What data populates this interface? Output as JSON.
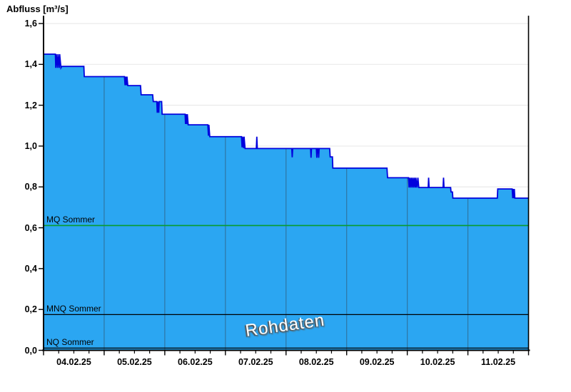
{
  "title": "Abfluss [m³/s]",
  "watermark": "Rohdaten",
  "chart_data": {
    "type": "area",
    "title": "Abfluss [m³/s]",
    "ylabel": "Abfluss [m³/s]",
    "xlabel": "",
    "ylim": [
      0,
      1.6
    ],
    "x_days": 8,
    "legend": "none",
    "grid": {
      "horizontal": "light-gray at each 0.2",
      "vertical": "day separators visible only inside fill"
    },
    "colors": {
      "fill": "#2BA6F2",
      "line": "#0202DD",
      "day_grid": "#2E76A4",
      "h_grid": "#E9E9E9",
      "axis": "#000000",
      "mq_green": "#0A9B2D"
    },
    "y_ticks": [
      {
        "v": 0.0,
        "label": "0,0"
      },
      {
        "v": 0.2,
        "label": "0,2"
      },
      {
        "v": 0.4,
        "label": "0,4"
      },
      {
        "v": 0.6,
        "label": "0,6"
      },
      {
        "v": 0.8,
        "label": "0,8"
      },
      {
        "v": 1.0,
        "label": "1,0"
      },
      {
        "v": 1.2,
        "label": "1,2"
      },
      {
        "v": 1.4,
        "label": "1,4"
      },
      {
        "v": 1.6,
        "label": "1,6"
      }
    ],
    "x_ticks": [
      {
        "day_center": 0.5,
        "label": "04.02.25"
      },
      {
        "day_center": 1.5,
        "label": "05.02.25"
      },
      {
        "day_center": 2.5,
        "label": "06.02.25"
      },
      {
        "day_center": 3.5,
        "label": "07.02.25"
      },
      {
        "day_center": 4.5,
        "label": "08.02.25"
      },
      {
        "day_center": 5.5,
        "label": "09.02.25"
      },
      {
        "day_center": 6.5,
        "label": "10.02.25"
      },
      {
        "day_center": 7.5,
        "label": "11.02.25"
      }
    ],
    "minor_x_ticks_per_day": 3,
    "reference_lines": [
      {
        "name": "MQ Sommer",
        "value": 0.611,
        "color": "#0A9B2D"
      },
      {
        "name": "MNQ Sommer",
        "value": 0.175,
        "color": "#000000"
      },
      {
        "name": "NQ Sommer",
        "value": 0.011,
        "color": "#000000"
      }
    ],
    "series": [
      {
        "name": "Abfluss Rohdaten",
        "unit": "m³/s",
        "points": [
          [
            0.0,
            1.45
          ],
          [
            0.195,
            1.45
          ],
          [
            0.202,
            1.383
          ],
          [
            0.21,
            1.45
          ],
          [
            0.23,
            1.383
          ],
          [
            0.238,
            1.45
          ],
          [
            0.258,
            1.383
          ],
          [
            0.266,
            1.45
          ],
          [
            0.287,
            1.383
          ],
          [
            0.3,
            1.39
          ],
          [
            0.665,
            1.39
          ],
          [
            0.672,
            1.34
          ],
          [
            1.335,
            1.34
          ],
          [
            1.345,
            1.298
          ],
          [
            1.353,
            1.34
          ],
          [
            1.368,
            1.298
          ],
          [
            1.376,
            1.34
          ],
          [
            1.39,
            1.296
          ],
          [
            1.6,
            1.296
          ],
          [
            1.61,
            1.251
          ],
          [
            1.8,
            1.251
          ],
          [
            1.81,
            1.218
          ],
          [
            1.868,
            1.218
          ],
          [
            1.876,
            1.163
          ],
          [
            1.884,
            1.218
          ],
          [
            1.9,
            1.163
          ],
          [
            1.908,
            1.218
          ],
          [
            1.948,
            1.218
          ],
          [
            1.956,
            1.156
          ],
          [
            2.335,
            1.156
          ],
          [
            2.342,
            1.108
          ],
          [
            2.35,
            1.156
          ],
          [
            2.364,
            1.108
          ],
          [
            2.372,
            1.156
          ],
          [
            2.386,
            1.104
          ],
          [
            2.71,
            1.104
          ],
          [
            2.72,
            1.051
          ],
          [
            2.728,
            1.104
          ],
          [
            2.742,
            1.046
          ],
          [
            3.265,
            1.046
          ],
          [
            3.275,
            0.994
          ],
          [
            3.283,
            1.046
          ],
          [
            3.3,
            0.99
          ],
          [
            3.308,
            1.046
          ],
          [
            3.324,
            0.988
          ],
          [
            3.51,
            0.988
          ],
          [
            3.518,
            1.046
          ],
          [
            3.526,
            0.988
          ],
          [
            4.095,
            0.988
          ],
          [
            4.102,
            0.945
          ],
          [
            4.11,
            0.988
          ],
          [
            4.405,
            0.988
          ],
          [
            4.412,
            0.943
          ],
          [
            4.42,
            0.988
          ],
          [
            4.5,
            0.988
          ],
          [
            4.508,
            0.943
          ],
          [
            4.516,
            0.988
          ],
          [
            4.53,
            0.988
          ],
          [
            4.538,
            0.943
          ],
          [
            4.546,
            0.988
          ],
          [
            4.72,
            0.988
          ],
          [
            4.728,
            0.947
          ],
          [
            4.765,
            0.947
          ],
          [
            4.772,
            0.892
          ],
          [
            5.665,
            0.892
          ],
          [
            5.675,
            0.845
          ],
          [
            6.02,
            0.845
          ],
          [
            6.03,
            0.797
          ],
          [
            6.038,
            0.845
          ],
          [
            6.056,
            0.797
          ],
          [
            6.064,
            0.845
          ],
          [
            6.082,
            0.797
          ],
          [
            6.09,
            0.845
          ],
          [
            6.108,
            0.797
          ],
          [
            6.116,
            0.845
          ],
          [
            6.134,
            0.797
          ],
          [
            6.142,
            0.845
          ],
          [
            6.16,
            0.797
          ],
          [
            6.175,
            0.845
          ],
          [
            6.19,
            0.797
          ],
          [
            6.345,
            0.797
          ],
          [
            6.352,
            0.845
          ],
          [
            6.36,
            0.797
          ],
          [
            6.59,
            0.797
          ],
          [
            6.598,
            0.845
          ],
          [
            6.606,
            0.797
          ],
          [
            6.715,
            0.797
          ],
          [
            6.722,
            0.775
          ],
          [
            6.745,
            0.775
          ],
          [
            6.752,
            0.745
          ],
          [
            7.485,
            0.745
          ],
          [
            7.492,
            0.79
          ],
          [
            7.73,
            0.79
          ],
          [
            7.74,
            0.745
          ],
          [
            7.748,
            0.79
          ],
          [
            7.756,
            0.745
          ],
          [
            7.766,
            0.79
          ],
          [
            7.774,
            0.745
          ],
          [
            8.0,
            0.745
          ]
        ]
      }
    ]
  }
}
